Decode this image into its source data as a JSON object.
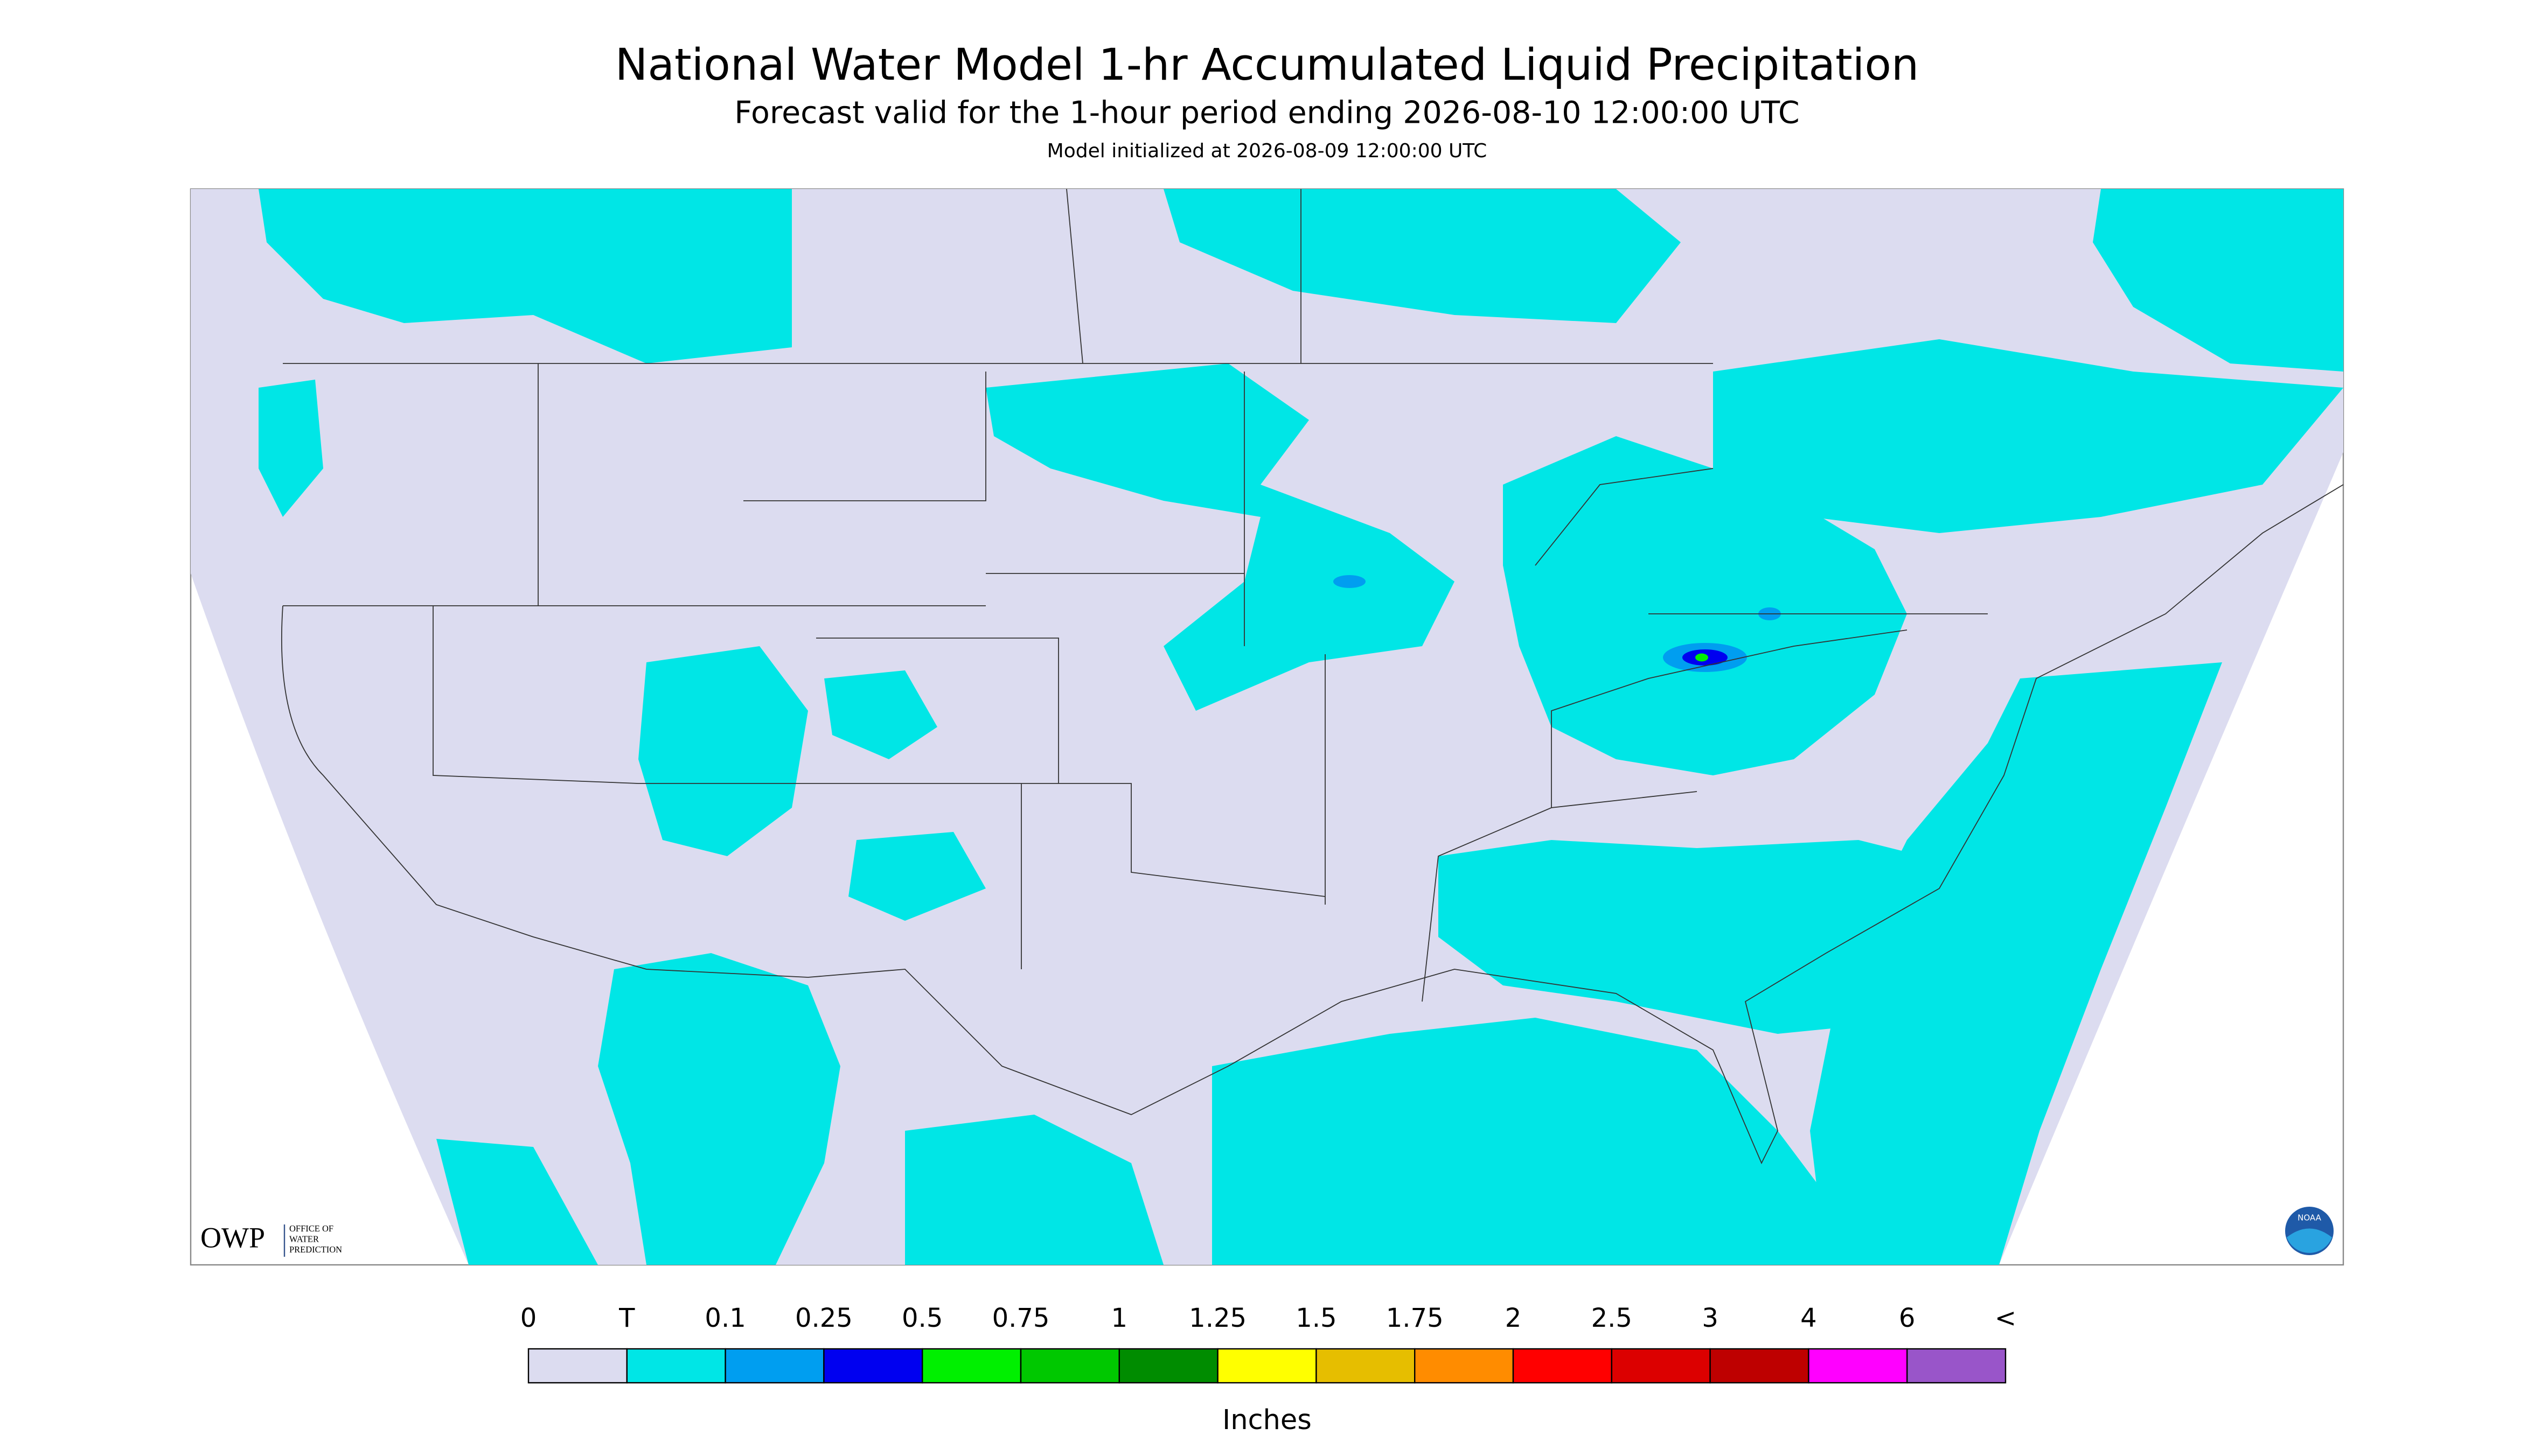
{
  "title": "National Water Model 1-hr Accumulated Liquid Precipitation",
  "subtitle": "Forecast valid for the 1-hour period ending 2026-08-10 12:00:00 UTC",
  "initialized": "Model initialized at 2026-08-09 12:00:00 UTC",
  "legend": {
    "labels": [
      "0",
      "T",
      "0.1",
      "0.25",
      "0.5",
      "0.75",
      "1",
      "1.25",
      "1.5",
      "1.75",
      "2",
      "2.5",
      "3",
      "4",
      "6",
      "<"
    ],
    "colors": [
      "#dcdcf0",
      "#00e6e6",
      "#009ef0",
      "#0000f0",
      "#00f000",
      "#00c800",
      "#008c00",
      "#ffff00",
      "#e6be00",
      "#ff8c00",
      "#ff0000",
      "#dc0000",
      "#be0000",
      "#ff00ff",
      "#9955c9"
    ],
    "units": "Inches"
  },
  "logos": {
    "owp": "OWP",
    "owp_lines": [
      "OFFICE OF",
      "WATER",
      "PREDICTION"
    ],
    "noaa": "NOAA"
  }
}
